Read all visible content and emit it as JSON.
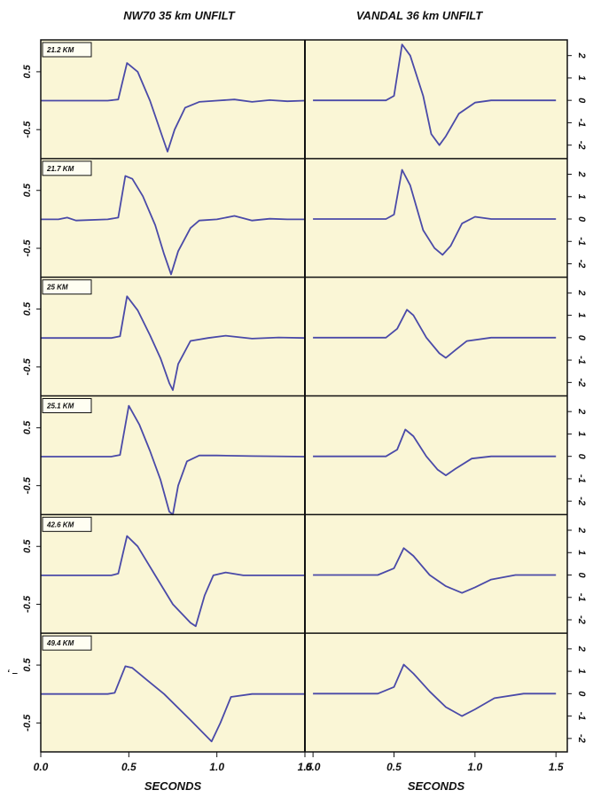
{
  "figure": {
    "left_title": "NW70 35 km UNFILT",
    "right_title": "VANDAL 36 km UNFILT",
    "stray_label": "ʻ ‒",
    "colors": {
      "trace": "#4a4aa8",
      "panel_bg": "#faf6d6",
      "frame": "#111111"
    }
  },
  "chart_data": [
    {
      "type": "line",
      "title": "NW70 35 km UNFILT",
      "xlabel": "SECONDS",
      "ylabel": "",
      "xlim": [
        0,
        1.5
      ],
      "ylim": [
        -1.0,
        1.05
      ],
      "xticks": [
        "0.0",
        "0.5",
        "1.0",
        "1.5"
      ],
      "yticks": [
        "0.5",
        "-0.5"
      ],
      "grid": false,
      "panels": [
        {
          "label": "21.2 KM",
          "points": [
            [
              0.0,
              0.0
            ],
            [
              0.38,
              0.0
            ],
            [
              0.44,
              0.02
            ],
            [
              0.49,
              0.65
            ],
            [
              0.55,
              0.5
            ],
            [
              0.62,
              0.0
            ],
            [
              0.69,
              -0.62
            ],
            [
              0.72,
              -0.88
            ],
            [
              0.76,
              -0.5
            ],
            [
              0.82,
              -0.12
            ],
            [
              0.9,
              -0.02
            ],
            [
              1.0,
              0.0
            ],
            [
              1.1,
              0.02
            ],
            [
              1.2,
              -0.02
            ],
            [
              1.3,
              0.01
            ],
            [
              1.4,
              -0.01
            ],
            [
              1.5,
              0.0
            ]
          ]
        },
        {
          "label": "21.7 KM",
          "points": [
            [
              0.0,
              0.0
            ],
            [
              0.1,
              0.0
            ],
            [
              0.15,
              0.03
            ],
            [
              0.2,
              -0.02
            ],
            [
              0.38,
              0.0
            ],
            [
              0.44,
              0.03
            ],
            [
              0.48,
              0.75
            ],
            [
              0.52,
              0.7
            ],
            [
              0.58,
              0.4
            ],
            [
              0.65,
              -0.1
            ],
            [
              0.7,
              -0.6
            ],
            [
              0.74,
              -0.95
            ],
            [
              0.78,
              -0.55
            ],
            [
              0.85,
              -0.15
            ],
            [
              0.9,
              -0.02
            ],
            [
              1.0,
              0.0
            ],
            [
              1.1,
              0.06
            ],
            [
              1.2,
              -0.02
            ],
            [
              1.3,
              0.01
            ],
            [
              1.4,
              0.0
            ],
            [
              1.5,
              0.0
            ]
          ]
        },
        {
          "label": "25 KM",
          "points": [
            [
              0.0,
              0.0
            ],
            [
              0.4,
              0.0
            ],
            [
              0.45,
              0.03
            ],
            [
              0.49,
              0.72
            ],
            [
              0.55,
              0.48
            ],
            [
              0.62,
              0.05
            ],
            [
              0.68,
              -0.35
            ],
            [
              0.73,
              -0.78
            ],
            [
              0.75,
              -0.9
            ],
            [
              0.78,
              -0.45
            ],
            [
              0.85,
              -0.05
            ],
            [
              0.95,
              0.0
            ],
            [
              1.05,
              0.04
            ],
            [
              1.2,
              -0.01
            ],
            [
              1.35,
              0.01
            ],
            [
              1.5,
              0.0
            ]
          ]
        },
        {
          "label": "25.1 KM",
          "points": [
            [
              0.0,
              0.0
            ],
            [
              0.4,
              0.0
            ],
            [
              0.45,
              0.03
            ],
            [
              0.5,
              0.88
            ],
            [
              0.56,
              0.55
            ],
            [
              0.62,
              0.1
            ],
            [
              0.68,
              -0.4
            ],
            [
              0.73,
              -0.95
            ],
            [
              0.75,
              -1.0
            ],
            [
              0.78,
              -0.5
            ],
            [
              0.83,
              -0.08
            ],
            [
              0.9,
              0.02
            ],
            [
              1.0,
              0.02
            ],
            [
              1.2,
              0.01
            ],
            [
              1.5,
              0.0
            ]
          ]
        },
        {
          "label": "42.6 KM",
          "points": [
            [
              0.0,
              0.0
            ],
            [
              0.4,
              0.0
            ],
            [
              0.44,
              0.03
            ],
            [
              0.49,
              0.68
            ],
            [
              0.55,
              0.5
            ],
            [
              0.65,
              0.0
            ],
            [
              0.75,
              -0.5
            ],
            [
              0.85,
              -0.82
            ],
            [
              0.88,
              -0.88
            ],
            [
              0.93,
              -0.35
            ],
            [
              0.98,
              0.0
            ],
            [
              1.05,
              0.05
            ],
            [
              1.15,
              0.0
            ],
            [
              1.5,
              0.0
            ]
          ]
        },
        {
          "label": "49.4 KM",
          "points": [
            [
              0.0,
              0.0
            ],
            [
              0.38,
              0.0
            ],
            [
              0.42,
              0.02
            ],
            [
              0.48,
              0.48
            ],
            [
              0.52,
              0.45
            ],
            [
              0.6,
              0.25
            ],
            [
              0.7,
              0.0
            ],
            [
              0.85,
              -0.45
            ],
            [
              0.97,
              -0.82
            ],
            [
              1.02,
              -0.5
            ],
            [
              1.08,
              -0.05
            ],
            [
              1.2,
              0.0
            ],
            [
              1.5,
              0.0
            ]
          ]
        }
      ]
    },
    {
      "type": "line",
      "title": "VANDAL 36 km UNFILT",
      "xlabel": "SECONDS",
      "ylabel": "",
      "xlim": [
        -0.05,
        1.57
      ],
      "ylim": [
        -2.6,
        2.7
      ],
      "xticks": [
        "0.0",
        "0.5",
        "1.0",
        "1.5"
      ],
      "yticks": [
        "2",
        "1",
        "0",
        "-1",
        "-2"
      ],
      "grid": false,
      "panels": [
        {
          "label": "",
          "points": [
            [
              0.0,
              0.0
            ],
            [
              0.45,
              0.0
            ],
            [
              0.5,
              0.2
            ],
            [
              0.55,
              2.5
            ],
            [
              0.6,
              2.0
            ],
            [
              0.68,
              0.2
            ],
            [
              0.73,
              -1.5
            ],
            [
              0.78,
              -2.0
            ],
            [
              0.82,
              -1.6
            ],
            [
              0.9,
              -0.6
            ],
            [
              1.0,
              -0.1
            ],
            [
              1.1,
              0.0
            ],
            [
              1.5,
              0.0
            ]
          ]
        },
        {
          "label": "",
          "points": [
            [
              0.0,
              0.0
            ],
            [
              0.45,
              0.0
            ],
            [
              0.5,
              0.2
            ],
            [
              0.55,
              2.2
            ],
            [
              0.6,
              1.5
            ],
            [
              0.68,
              -0.5
            ],
            [
              0.75,
              -1.3
            ],
            [
              0.8,
              -1.6
            ],
            [
              0.85,
              -1.2
            ],
            [
              0.92,
              -0.2
            ],
            [
              1.0,
              0.1
            ],
            [
              1.1,
              0.0
            ],
            [
              1.5,
              0.0
            ]
          ]
        },
        {
          "label": "",
          "points": [
            [
              0.0,
              0.0
            ],
            [
              0.45,
              0.0
            ],
            [
              0.52,
              0.4
            ],
            [
              0.58,
              1.25
            ],
            [
              0.62,
              1.0
            ],
            [
              0.7,
              0.0
            ],
            [
              0.78,
              -0.7
            ],
            [
              0.82,
              -0.9
            ],
            [
              0.88,
              -0.55
            ],
            [
              0.95,
              -0.15
            ],
            [
              1.1,
              0.0
            ],
            [
              1.5,
              0.0
            ]
          ]
        },
        {
          "label": "",
          "points": [
            [
              0.0,
              0.0
            ],
            [
              0.45,
              0.0
            ],
            [
              0.52,
              0.3
            ],
            [
              0.57,
              1.2
            ],
            [
              0.62,
              0.9
            ],
            [
              0.7,
              0.0
            ],
            [
              0.77,
              -0.6
            ],
            [
              0.82,
              -0.85
            ],
            [
              0.88,
              -0.55
            ],
            [
              0.98,
              -0.1
            ],
            [
              1.1,
              0.0
            ],
            [
              1.5,
              0.0
            ]
          ]
        },
        {
          "label": "",
          "points": [
            [
              0.0,
              0.0
            ],
            [
              0.4,
              0.0
            ],
            [
              0.5,
              0.3
            ],
            [
              0.56,
              1.2
            ],
            [
              0.62,
              0.85
            ],
            [
              0.72,
              0.0
            ],
            [
              0.82,
              -0.5
            ],
            [
              0.92,
              -0.8
            ],
            [
              1.0,
              -0.55
            ],
            [
              1.1,
              -0.2
            ],
            [
              1.25,
              0.0
            ],
            [
              1.5,
              0.0
            ]
          ]
        },
        {
          "label": "",
          "points": [
            [
              0.0,
              0.0
            ],
            [
              0.4,
              0.0
            ],
            [
              0.5,
              0.3
            ],
            [
              0.56,
              1.3
            ],
            [
              0.62,
              0.9
            ],
            [
              0.72,
              0.1
            ],
            [
              0.82,
              -0.6
            ],
            [
              0.92,
              -1.0
            ],
            [
              1.0,
              -0.7
            ],
            [
              1.12,
              -0.2
            ],
            [
              1.3,
              0.0
            ],
            [
              1.5,
              0.0
            ]
          ]
        }
      ]
    }
  ]
}
